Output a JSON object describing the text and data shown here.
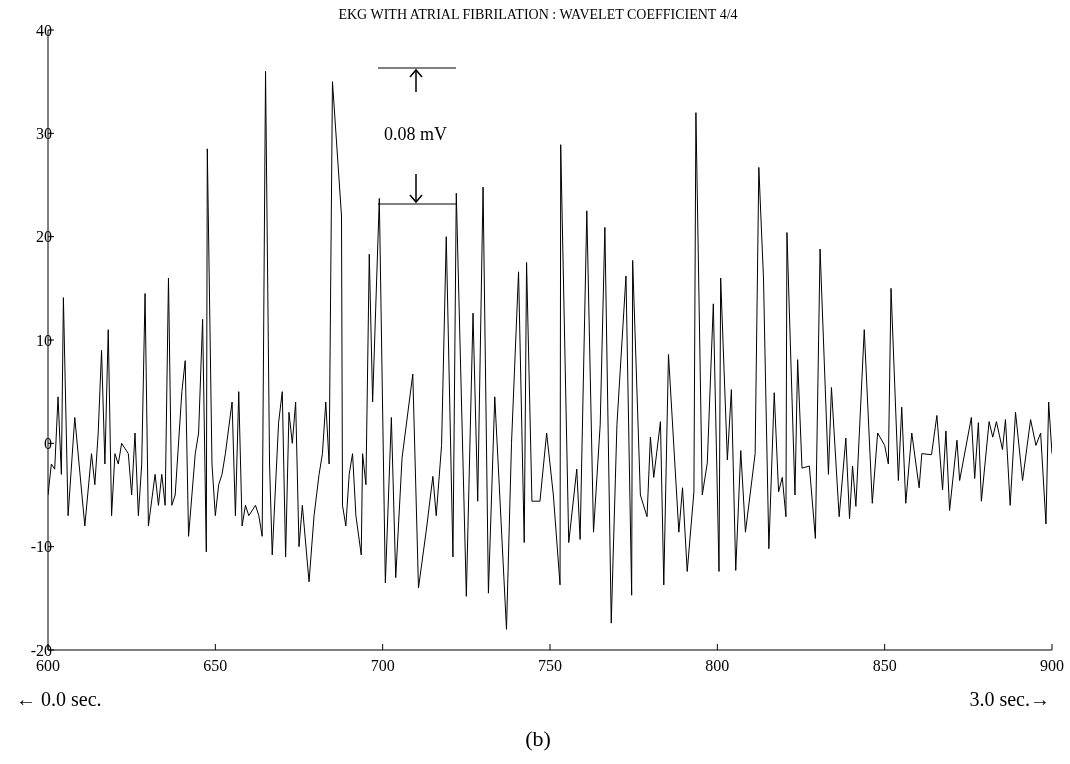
{
  "chart_data": {
    "type": "line",
    "title": "EKG WITH ATRIAL FIBRILATION : WAVELET COEFFICIENT 4/4",
    "x": [
      600,
      601,
      602,
      603,
      604,
      604.6,
      606,
      608,
      611,
      613,
      614,
      615,
      616,
      617,
      618,
      619,
      620,
      621,
      622,
      624,
      625,
      626,
      627,
      628,
      629,
      630,
      632,
      633,
      634,
      635,
      636,
      637,
      638,
      640,
      641,
      642,
      644,
      645,
      646.2,
      647.3,
      647.6,
      649,
      650,
      651,
      652,
      653,
      655,
      656,
      657,
      658,
      659,
      660,
      662,
      663,
      664,
      665,
      666.2,
      667,
      668.9,
      670,
      671,
      672,
      673,
      674,
      675,
      676,
      678,
      679.5,
      681,
      682,
      683,
      684,
      685,
      687.7,
      688,
      689,
      690,
      691,
      692,
      693.6,
      694,
      695,
      696,
      697,
      699,
      700.8,
      702.6,
      703.9,
      705.8,
      709,
      710.7,
      713,
      715,
      716,
      717.6,
      719,
      721,
      722,
      725,
      727,
      728.4,
      730,
      731.6,
      733.5,
      737,
      738.5,
      740.6,
      742.3,
      743,
      744.6,
      747,
      749,
      751,
      753,
      753.2,
      755.6,
      758,
      759,
      761,
      763,
      765,
      766.4,
      768.3,
      770,
      772.7,
      774.4,
      774.7,
      777,
      779,
      780,
      781,
      783,
      784,
      785.4,
      788.5,
      789.6,
      791,
      793,
      793.6,
      795.5,
      797,
      798.8,
      800.5,
      801,
      803,
      804.2,
      805.5,
      807,
      808.4,
      811.3,
      812.4,
      813.8,
      815.4,
      817,
      818.3,
      819.4,
      820.5,
      820.8,
      823.2,
      824,
      825.3,
      827.5,
      829.3,
      830.7,
      833.2,
      834.1,
      836.4,
      838.4,
      839.5,
      840.4,
      841.4,
      843.9,
      846.3,
      847.9,
      850,
      851.1,
      851.9,
      854.1,
      855.1,
      856.3,
      858.1,
      860.3,
      861.1,
      864,
      865.6,
      867.3,
      868.3,
      869.4,
      871.6,
      872.4,
      875.9,
      876.9,
      878,
      878.9,
      881.2,
      882.3,
      883.4,
      885.2,
      886.1,
      887.5,
      889.1,
      891.2,
      893.6,
      895.2,
      896.6,
      898.2,
      899,
      900
    ],
    "series": [
      {
        "color": "#000000",
        "values": [
          -5,
          -2,
          -2.5,
          4.5,
          -3,
          14.1,
          -7,
          2.5,
          -8,
          -1,
          -4,
          1,
          9,
          -2,
          11,
          -7,
          -1,
          -2,
          0,
          -1,
          -5,
          1,
          -7,
          -2,
          14.5,
          -8,
          -3,
          -6,
          -3,
          -6,
          16,
          -6,
          -5,
          5,
          8,
          -9,
          -1,
          1,
          12,
          -10.5,
          28.5,
          -2,
          -7,
          -4,
          -3,
          -1,
          4,
          -7,
          5,
          -8,
          -6,
          -7,
          -6,
          -7,
          -9,
          36,
          -2,
          -10.8,
          2,
          5,
          -11,
          3,
          0,
          4,
          -10,
          -6,
          -13.4,
          -7,
          -3,
          -1,
          4,
          -2,
          35,
          22,
          -6,
          -8,
          -3,
          -1,
          -7,
          -10.8,
          -1,
          -4,
          18.3,
          4,
          23.7,
          -13.5,
          2.5,
          -13,
          -1.4,
          6.7,
          -14,
          -8.5,
          -3.2,
          -7,
          -0.2,
          20,
          -11,
          24.2,
          -14.8,
          12.6,
          -5.6,
          24.8,
          -14.5,
          4.5,
          -18,
          0,
          16.6,
          -9.6,
          17.5,
          -5.6,
          -5.6,
          1,
          -5,
          -13.7,
          28.9,
          -9.6,
          -2.5,
          -9.3,
          22.5,
          -8.6,
          1.8,
          20.9,
          -17.4,
          1.8,
          16.2,
          -14.7,
          17.7,
          -5,
          -7.1,
          0.6,
          -3.3,
          2.1,
          -13.7,
          8.6,
          -8.6,
          -4.3,
          -12.4,
          -4.7,
          32,
          -5,
          -1.9,
          13.5,
          -12.4,
          16,
          -1.6,
          5.2,
          -12.3,
          -0.7,
          -8.6,
          -1,
          26.7,
          15.9,
          -10.2,
          4.9,
          -4.7,
          -3.3,
          -7.1,
          20.4,
          -5,
          8.1,
          -2.4,
          -2.2,
          -9.2,
          18.8,
          -3,
          5.4,
          -7.1,
          0.5,
          -7.3,
          -2.2,
          -6.1,
          11,
          -5.8,
          1,
          -0.2,
          -2,
          15,
          -3.6,
          3.5,
          -5.8,
          1,
          -4.3,
          -1,
          -1.1,
          2.7,
          -4.5,
          1.2,
          -6.5,
          0.3,
          -3.6,
          2.5,
          -3.4,
          2,
          -5.6,
          2.1,
          0.6,
          2.1,
          -0.6,
          2.3,
          -6,
          3,
          -3.6,
          2.3,
          -0.2,
          1,
          -7.8,
          4,
          -1
        ]
      }
    ],
    "xlim": [
      600,
      900
    ],
    "xticks": [
      600,
      650,
      700,
      750,
      800,
      850,
      900
    ],
    "ylim": [
      -20,
      40
    ],
    "yticks": [
      -20,
      -10,
      0,
      10,
      20,
      30,
      40
    ],
    "grid": false,
    "legend": false,
    "marker": "none",
    "line_style": "solid",
    "annotations": [
      "0.08 mV",
      "← 0.0 sec.",
      "3.0 sec.→",
      "(b)"
    ]
  }
}
